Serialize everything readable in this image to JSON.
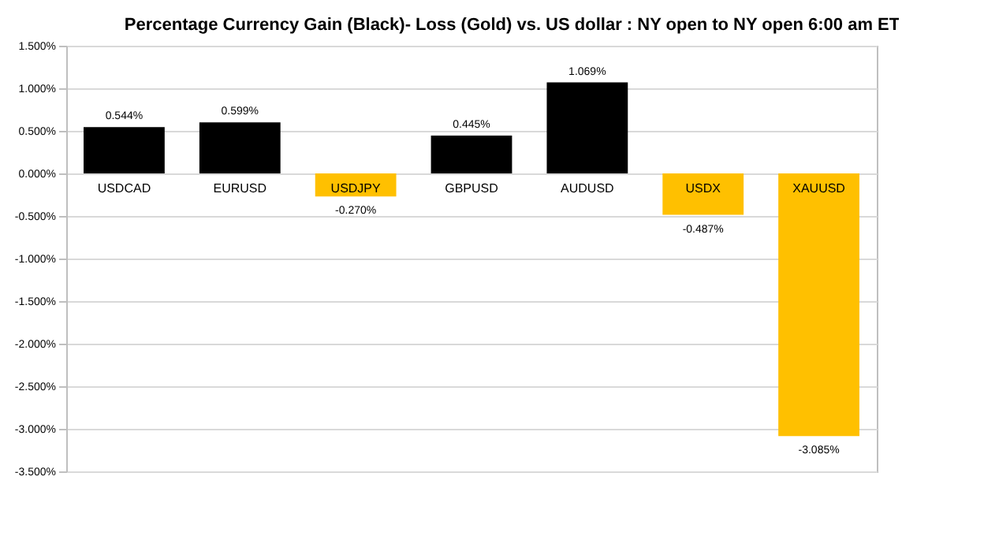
{
  "chart_data": {
    "type": "bar",
    "title": "Percentage Currency  Gain (Black)- Loss (Gold)  vs. US dollar :  NY open to NY open 6:00 am ET",
    "categories": [
      "USDCAD",
      "EURUSD",
      "USDJPY",
      "GBPUSD",
      "AUDUSD",
      "USDX",
      "XAUUSD"
    ],
    "values": [
      0.544,
      0.599,
      -0.27,
      0.445,
      1.069,
      -0.487,
      -3.085
    ],
    "value_labels": [
      "0.544%",
      "0.599%",
      "-0.270%",
      "0.445%",
      "1.069%",
      "-0.487%",
      "-3.085%"
    ],
    "colors": [
      "#000000",
      "#000000",
      "#ffc000",
      "#000000",
      "#000000",
      "#ffc000",
      "#ffc000"
    ],
    "ylim": [
      -3.5,
      1.5
    ],
    "yticks": [
      {
        "value": 1.5,
        "label": "1.500%"
      },
      {
        "value": 1.0,
        "label": "1.000%"
      },
      {
        "value": 0.5,
        "label": "0.500%"
      },
      {
        "value": 0.0,
        "label": "0.000%"
      },
      {
        "value": -0.5,
        "label": "-0.500%"
      },
      {
        "value": -1.0,
        "label": "-1.000%"
      },
      {
        "value": -1.5,
        "label": "-1.500%"
      },
      {
        "value": -2.0,
        "label": "-2.000%"
      },
      {
        "value": -2.5,
        "label": "-2.500%"
      },
      {
        "value": -3.0,
        "label": "-3.000%"
      },
      {
        "value": -3.5,
        "label": "-3.500%"
      }
    ],
    "grid": "y"
  }
}
